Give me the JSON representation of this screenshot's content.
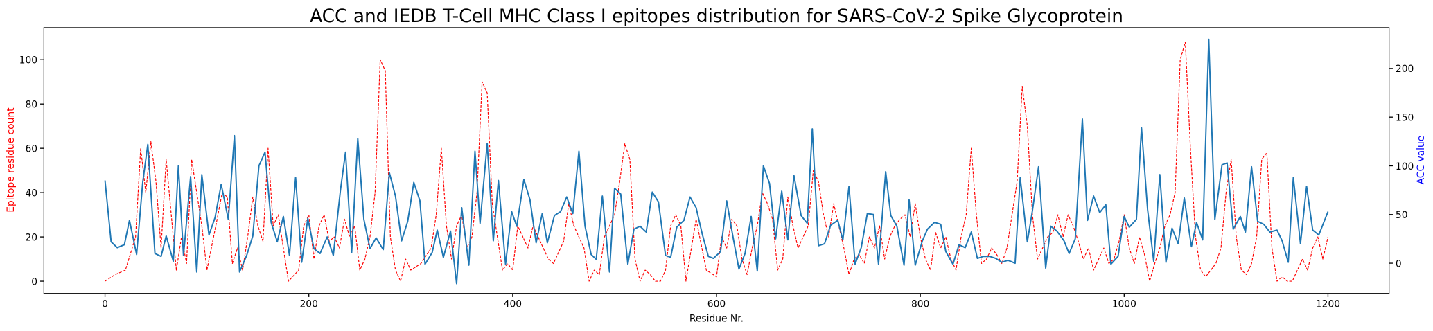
{
  "chart_data": {
    "type": "line",
    "title": "ACC and IEDB T-Cell MHC Class I epitopes distribution for SARS-CoV-2 Spike Glycoprotein",
    "xlabel": "Residue Nr.",
    "ylabel": "Epitope residue count",
    "y2label": "ACC value",
    "ylabel_color": "#ff0000",
    "y2label_color": "#0000ff",
    "xlim": [
      -60,
      1260
    ],
    "xticks": [
      0,
      200,
      400,
      600,
      800,
      1000,
      1200
    ],
    "ylim": [
      -5.5,
      114.5
    ],
    "yticks": [
      0,
      20,
      40,
      60,
      80,
      100
    ],
    "y2lim": [
      -31,
      242
    ],
    "y2ticks": [
      0,
      50,
      100,
      150,
      200
    ],
    "series": [
      {
        "name": "Epitope residue count",
        "color": "#ff0000",
        "dashed": true,
        "x": [
          0,
          10,
          20,
          30,
          35,
          40,
          45,
          50,
          55,
          60,
          65,
          70,
          75,
          80,
          85,
          90,
          95,
          100,
          110,
          115,
          120,
          125,
          130,
          135,
          140,
          145,
          150,
          155,
          160,
          165,
          170,
          175,
          180,
          190,
          195,
          200,
          205,
          210,
          215,
          220,
          225,
          230,
          235,
          240,
          245,
          250,
          255,
          260,
          265,
          270,
          275,
          280,
          285,
          290,
          295,
          300,
          310,
          320,
          325,
          330,
          335,
          340,
          345,
          350,
          355,
          360,
          365,
          370,
          375,
          380,
          385,
          390,
          395,
          400,
          405,
          410,
          415,
          420,
          425,
          430,
          435,
          440,
          450,
          455,
          460,
          465,
          470,
          475,
          480,
          485,
          490,
          495,
          500,
          505,
          510,
          515,
          520,
          525,
          530,
          535,
          540,
          545,
          550,
          555,
          560,
          565,
          570,
          580,
          590,
          600,
          605,
          610,
          615,
          620,
          625,
          630,
          635,
          640,
          645,
          650,
          655,
          660,
          665,
          670,
          675,
          680,
          685,
          690,
          695,
          700,
          705,
          710,
          715,
          720,
          725,
          730,
          735,
          740,
          745,
          750,
          755,
          760,
          765,
          770,
          775,
          780,
          785,
          790,
          795,
          800,
          805,
          810,
          815,
          820,
          825,
          830,
          835,
          840,
          845,
          850,
          855,
          860,
          865,
          870,
          875,
          880,
          885,
          890,
          895,
          900,
          905,
          910,
          915,
          920,
          925,
          930,
          935,
          940,
          945,
          950,
          955,
          960,
          965,
          970,
          975,
          980,
          985,
          990,
          995,
          1000,
          1005,
          1010,
          1015,
          1020,
          1025,
          1030,
          1035,
          1040,
          1045,
          1050,
          1055,
          1060,
          1065,
          1070,
          1075,
          1080,
          1085,
          1090,
          1095,
          1100,
          1105,
          1110,
          1115,
          1120,
          1125,
          1130,
          1135,
          1140,
          1145,
          1150,
          1155,
          1160,
          1165,
          1170,
          1175,
          1180,
          1185,
          1190,
          1195,
          1200
        ],
        "values": [
          0,
          3,
          5,
          20,
          60,
          40,
          63,
          45,
          15,
          55,
          30,
          5,
          20,
          8,
          55,
          40,
          25,
          5,
          28,
          40,
          38,
          8,
          15,
          5,
          20,
          38,
          25,
          18,
          60,
          25,
          30,
          15,
          0,
          5,
          25,
          30,
          10,
          25,
          30,
          18,
          20,
          15,
          28,
          20,
          25,
          5,
          10,
          20,
          40,
          100,
          95,
          20,
          5,
          0,
          10,
          5,
          8,
          15,
          30,
          60,
          25,
          10,
          25,
          30,
          15,
          20,
          40,
          90,
          85,
          35,
          20,
          5,
          8,
          5,
          25,
          20,
          15,
          25,
          20,
          15,
          10,
          8,
          18,
          35,
          25,
          20,
          15,
          0,
          5,
          3,
          20,
          25,
          30,
          45,
          62,
          55,
          10,
          0,
          5,
          3,
          0,
          0,
          5,
          25,
          30,
          25,
          0,
          28,
          5,
          2,
          20,
          15,
          28,
          25,
          10,
          3,
          15,
          25,
          40,
          35,
          28,
          5,
          10,
          38,
          25,
          15,
          20,
          25,
          50,
          45,
          30,
          20,
          35,
          25,
          15,
          3,
          10,
          12,
          8,
          20,
          15,
          25,
          10,
          20,
          25,
          28,
          30,
          20,
          35,
          20,
          10,
          5,
          22,
          15,
          20,
          10,
          5,
          20,
          30,
          60,
          30,
          8,
          10,
          15,
          12,
          8,
          15,
          30,
          45,
          88,
          70,
          30,
          10,
          15,
          20,
          22,
          30,
          20,
          30,
          25,
          18,
          10,
          15,
          5,
          10,
          15,
          8,
          10,
          18,
          30,
          15,
          8,
          20,
          12,
          0,
          8,
          15,
          25,
          30,
          40,
          100,
          108,
          60,
          20,
          5,
          2,
          5,
          8,
          15,
          40,
          55,
          20,
          5,
          3,
          8,
          20,
          55,
          58,
          15,
          0,
          2,
          0,
          0,
          5,
          10,
          5,
          15,
          20,
          10,
          20
        ]
      },
      {
        "name": "ACC value",
        "color": "#1f77b4",
        "axis": "y2",
        "x": [
          0,
          6,
          12,
          19,
          24,
          31,
          37,
          42,
          49,
          55,
          60,
          67,
          72,
          77,
          84,
          90,
          95,
          102,
          108,
          114,
          121,
          127,
          132,
          139,
          145,
          151,
          157,
          163,
          169,
          175,
          181,
          187,
          193,
          199,
          205,
          211,
          218,
          224,
          231,
          236,
          242,
          248,
          254,
          260,
          266,
          273,
          279,
          285,
          291,
          297,
          303,
          309,
          314,
          321,
          326,
          332,
          339,
          345,
          350,
          357,
          363,
          368,
          375,
          381,
          386,
          393,
          399,
          404,
          411,
          417,
          423,
          429,
          434,
          441,
          447,
          453,
          459,
          465,
          471,
          477,
          482,
          488,
          495,
          500,
          506,
          513,
          519,
          525,
          531,
          537,
          543,
          550,
          555,
          561,
          568,
          574,
          580,
          586,
          592,
          597,
          604,
          610,
          616,
          622,
          628,
          634,
          640,
          646,
          652,
          658,
          664,
          670,
          676,
          683,
          689,
          694,
          700,
          706,
          712,
          719,
          724,
          730,
          736,
          742,
          748,
          754,
          759,
          766,
          771,
          777,
          784,
          789,
          795,
          802,
          807,
          814,
          820,
          825,
          832,
          838,
          844,
          850,
          856,
          862,
          868,
          874,
          880,
          886,
          893,
          898,
          905,
          910,
          916,
          923,
          928,
          934,
          941,
          946,
          952,
          959,
          964,
          970,
          976,
          982,
          987,
          994,
          1000,
          1005,
          1012,
          1017,
          1023,
          1029,
          1035,
          1041,
          1047,
          1053,
          1059,
          1066,
          1071,
          1077,
          1083,
          1089,
          1096,
          1101,
          1107,
          1114,
          1119,
          1125,
          1131,
          1137,
          1143,
          1150,
          1155,
          1161,
          1166,
          1173,
          1179,
          1185,
          1191,
          1200
        ],
        "values": [
          85,
          22,
          16,
          19,
          44,
          9,
          83,
          122,
          10,
          7,
          28,
          2,
          100,
          8,
          89,
          -9,
          91,
          29,
          47,
          81,
          45,
          131,
          -9,
          8,
          28,
          100,
          114,
          42,
          22,
          48,
          8,
          88,
          1,
          46,
          15,
          10,
          27,
          8,
          75,
          114,
          11,
          128,
          45,
          15,
          26,
          14,
          93,
          69,
          23,
          43,
          83,
          64,
          -1,
          11,
          34,
          6,
          33,
          -21,
          57,
          -2,
          115,
          41,
          123,
          23,
          85,
          -1,
          53,
          38,
          86,
          65,
          21,
          51,
          21,
          49,
          53,
          68,
          51,
          115,
          38,
          9,
          4,
          69,
          -9,
          77,
          71,
          -1,
          35,
          38,
          32,
          73,
          63,
          8,
          6,
          37,
          44,
          68,
          57,
          30,
          7,
          5,
          12,
          64,
          28,
          -6,
          10,
          48,
          -8,
          100,
          82,
          25,
          74,
          24,
          90,
          49,
          41,
          138,
          18,
          20,
          39,
          44,
          24,
          79,
          -1,
          16,
          51,
          50,
          -1,
          94,
          49,
          38,
          -2,
          65,
          -2,
          23,
          35,
          42,
          40,
          12,
          -1,
          19,
          16,
          32,
          5,
          7,
          7,
          5,
          1,
          3,
          0,
          88,
          22,
          54,
          99,
          -5,
          38,
          33,
          23,
          10,
          25,
          148,
          44,
          69,
          52,
          60,
          -1,
          7,
          48,
          37,
          45,
          139,
          55,
          2,
          91,
          1,
          36,
          20,
          67,
          17,
          42,
          24,
          230,
          45,
          101,
          103,
          35,
          48,
          32,
          99,
          43,
          40,
          32,
          34,
          23,
          1,
          88,
          20,
          79,
          34,
          29,
          53
        ]
      }
    ]
  }
}
